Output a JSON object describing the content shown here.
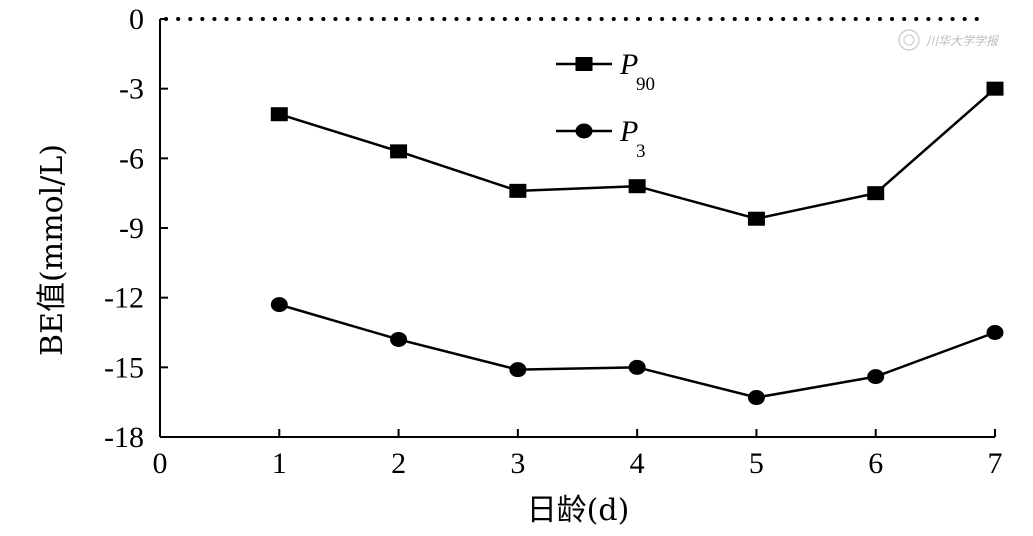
{
  "chart_data": {
    "type": "line",
    "xlabel": "日龄(d)",
    "ylabel": "BE值(mmol/L)",
    "xlim": [
      0,
      7
    ],
    "ylim": [
      -18,
      0
    ],
    "x_ticks": [
      "0",
      "1",
      "2",
      "3",
      "4",
      "5",
      "6",
      "7"
    ],
    "y_ticks": [
      "0",
      "-3",
      "-6",
      "-9",
      "-12",
      "-15",
      "-18"
    ],
    "y_tick_values": [
      0,
      -3,
      -6,
      -9,
      -12,
      -15,
      -18
    ],
    "grid": false,
    "reference_line": {
      "y": 0,
      "style": "dotted"
    },
    "legend_position": "top-center",
    "x": [
      1,
      2,
      3,
      4,
      5,
      6,
      7
    ],
    "series": [
      {
        "name": "P",
        "subscript": "90",
        "marker": "square",
        "values": [
          -4.1,
          -5.7,
          -7.4,
          -7.2,
          -8.6,
          -7.5,
          -3.0
        ]
      },
      {
        "name": "P",
        "subscript": "3",
        "marker": "circle",
        "values": [
          -12.3,
          -13.8,
          -15.1,
          -15.0,
          -16.3,
          -15.4,
          -13.5
        ]
      }
    ]
  },
  "watermark": {
    "icon": "seal-logo-icon",
    "text": "川华大学学报"
  },
  "colors": {
    "ink": "#000000",
    "watermark": "#bbbbbb"
  }
}
